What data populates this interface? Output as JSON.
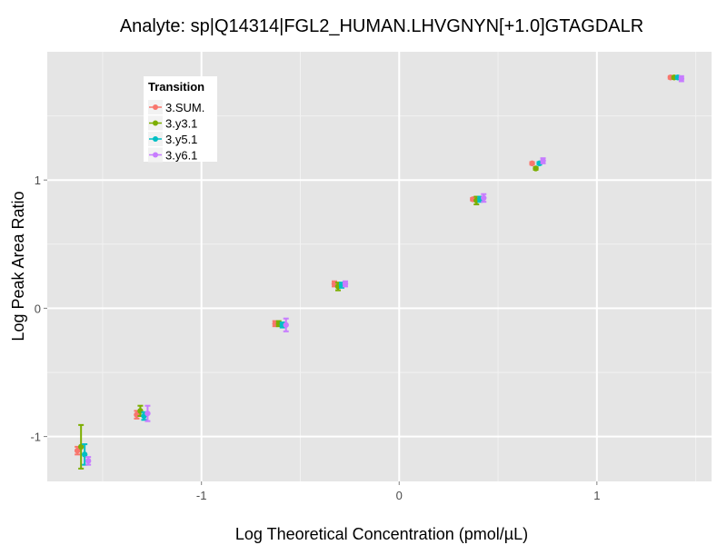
{
  "chart_data": {
    "type": "scatter",
    "title": "Analyte: sp|Q14314|FGL2_HUMAN.LHVGNYN[+1.0]GTAGDALR",
    "xlabel": "Log Theoretical Concentration (pmol/µL)",
    "ylabel": "Log Peak Area Ratio",
    "xlim": [
      -1.78,
      1.58
    ],
    "ylim": [
      -1.35,
      2.0
    ],
    "xticks": [
      -1,
      0,
      1
    ],
    "xtick_labels": [
      "-1",
      "0",
      "1"
    ],
    "yticks": [
      -1,
      0,
      1
    ],
    "ytick_labels": [
      "-1",
      "0",
      "1"
    ],
    "grid": true,
    "legend": {
      "title": "Transition",
      "placement": "top-left"
    },
    "x": [
      -1.6,
      -1.3,
      -0.6,
      -0.3,
      0.4,
      0.7,
      1.4
    ],
    "series": [
      {
        "name": "3.SUM.",
        "color": "#F8766D",
        "values": [
          -1.11,
          -0.83,
          -0.12,
          0.19,
          0.85,
          1.13,
          1.8
        ],
        "err": [
          0.03,
          0.03,
          0.02,
          0.02,
          0.01,
          0.01,
          0.01
        ]
      },
      {
        "name": "3.y3.1",
        "color": "#7CAE00",
        "values": [
          -1.08,
          -0.8,
          -0.12,
          0.17,
          0.84,
          1.09,
          1.8
        ],
        "err": [
          0.17,
          0.04,
          0.02,
          0.03,
          0.03,
          0.01,
          0.01
        ]
      },
      {
        "name": "3.y5.1",
        "color": "#00BFC4",
        "values": [
          -1.14,
          -0.84,
          -0.13,
          0.18,
          0.85,
          1.13,
          1.8
        ],
        "err": [
          0.08,
          0.03,
          0.02,
          0.02,
          0.02,
          0.01,
          0.01
        ]
      },
      {
        "name": "3.y6.1",
        "color": "#C77CFF",
        "values": [
          -1.19,
          -0.82,
          -0.13,
          0.19,
          0.86,
          1.15,
          1.79
        ],
        "err": [
          0.03,
          0.06,
          0.05,
          0.02,
          0.03,
          0.02,
          0.02
        ]
      }
    ]
  }
}
